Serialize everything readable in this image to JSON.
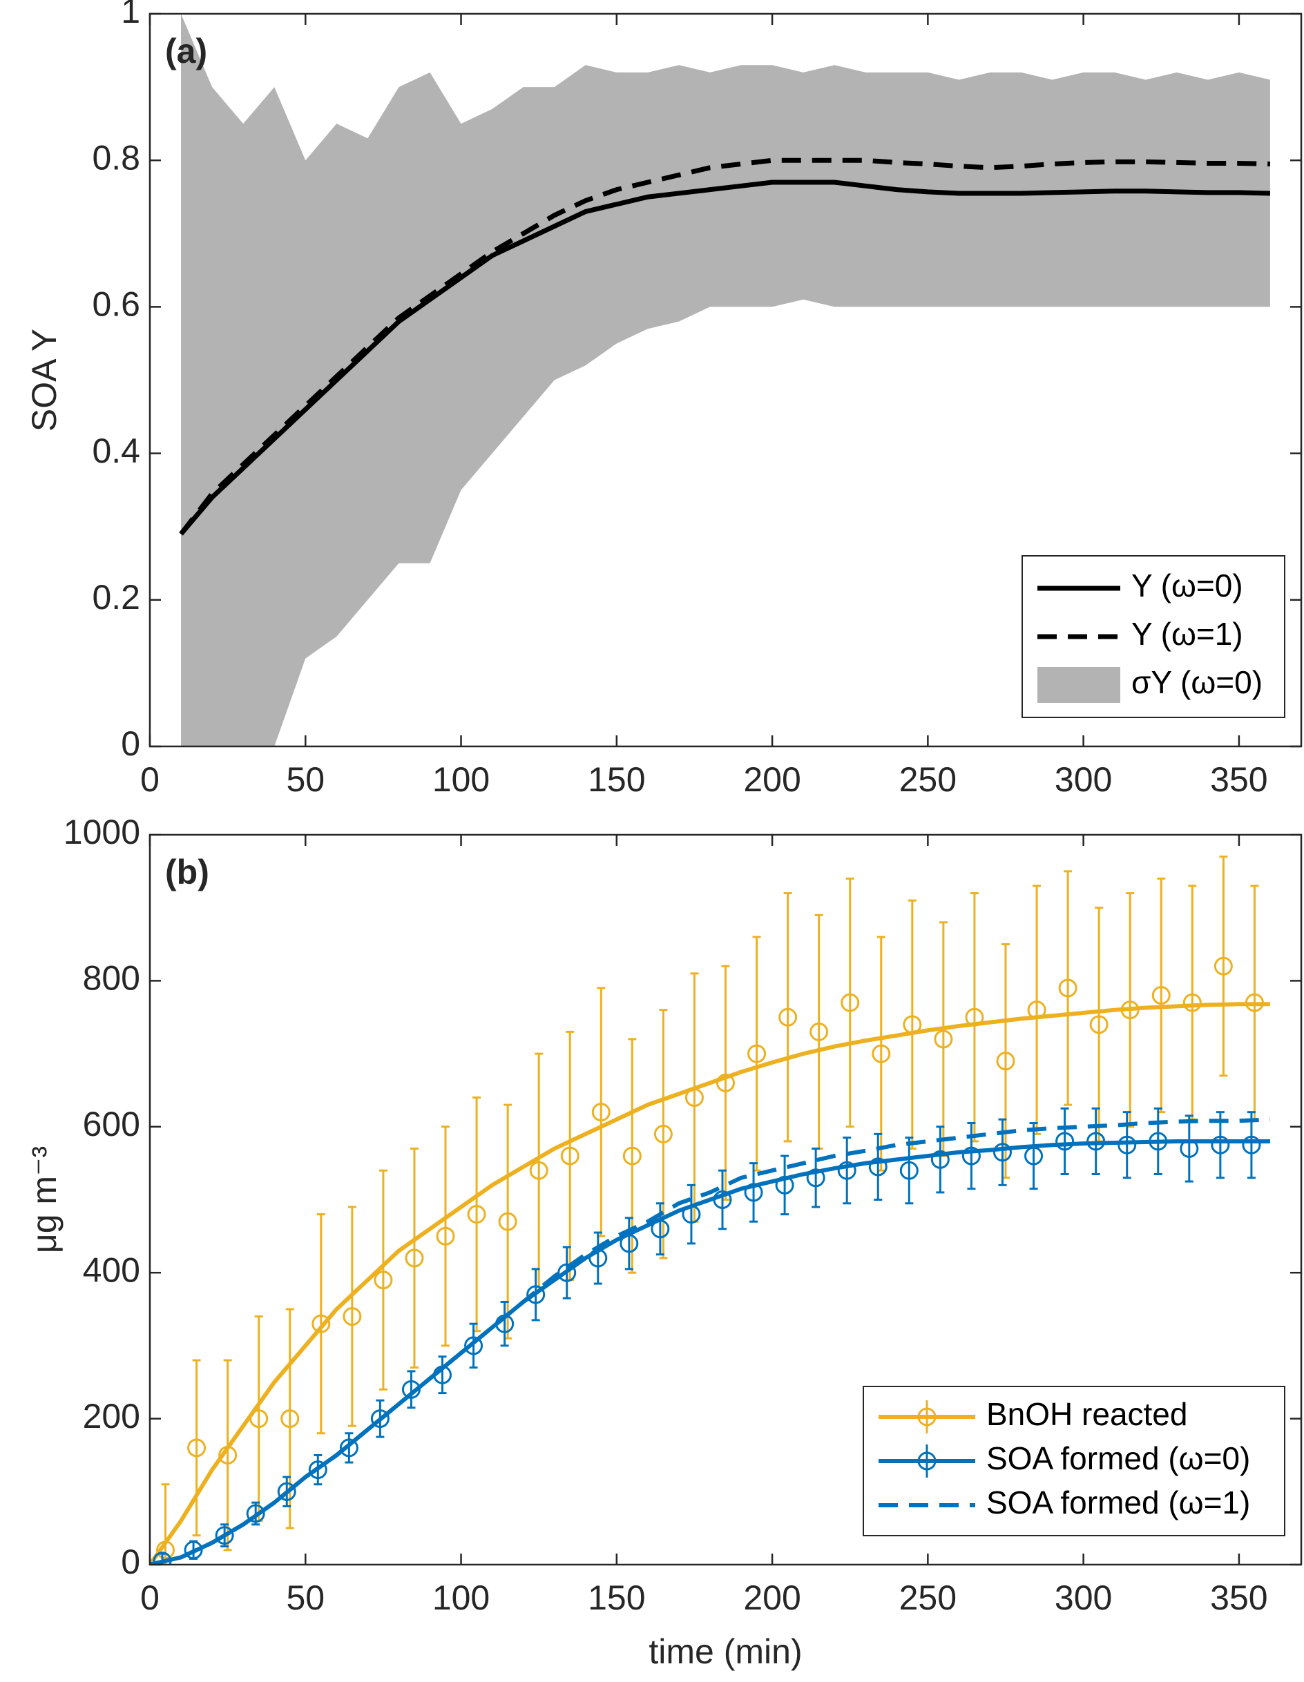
{
  "chart_data": [
    {
      "type": "line",
      "panel_label": "(a)",
      "ylabel": "SOA Y",
      "xlim": [
        0,
        370
      ],
      "xticks": [
        0,
        50,
        100,
        150,
        200,
        250,
        300,
        350
      ],
      "ylim": [
        0,
        1
      ],
      "yticks": [
        0,
        0.2,
        0.4,
        0.6,
        0.8,
        1
      ],
      "legend": "lower right",
      "x": [
        10,
        20,
        30,
        40,
        50,
        60,
        70,
        80,
        90,
        100,
        110,
        120,
        130,
        140,
        150,
        160,
        170,
        180,
        190,
        200,
        210,
        220,
        230,
        240,
        250,
        260,
        270,
        280,
        290,
        300,
        310,
        320,
        330,
        340,
        350,
        360
      ],
      "band": {
        "name": "σY (ω=0)",
        "color": "#b3b3b3",
        "upper": [
          1,
          0.9,
          0.85,
          0.9,
          0.8,
          0.85,
          0.83,
          0.9,
          0.92,
          0.85,
          0.87,
          0.9,
          0.9,
          0.93,
          0.92,
          0.92,
          0.93,
          0.92,
          0.93,
          0.93,
          0.92,
          0.93,
          0.92,
          0.92,
          0.92,
          0.91,
          0.92,
          0.92,
          0.91,
          0.92,
          0.92,
          0.91,
          0.92,
          0.91,
          0.92,
          0.91
        ],
        "lower": [
          0,
          0,
          0,
          0,
          0.12,
          0.15,
          0.2,
          0.25,
          0.25,
          0.35,
          0.4,
          0.45,
          0.5,
          0.52,
          0.55,
          0.57,
          0.58,
          0.6,
          0.6,
          0.6,
          0.61,
          0.6,
          0.6,
          0.6,
          0.6,
          0.6,
          0.6,
          0.6,
          0.6,
          0.6,
          0.6,
          0.6,
          0.6,
          0.6,
          0.6,
          0.6
        ]
      },
      "series": [
        {
          "name": "Y (ω=0)",
          "color": "#000000",
          "dashed": false,
          "values": [
            0.29,
            0.34,
            0.38,
            0.42,
            0.46,
            0.5,
            0.54,
            0.58,
            0.61,
            0.64,
            0.67,
            0.69,
            0.71,
            0.73,
            0.74,
            0.75,
            0.755,
            0.76,
            0.765,
            0.77,
            0.77,
            0.77,
            0.765,
            0.76,
            0.757,
            0.755,
            0.755,
            0.755,
            0.756,
            0.757,
            0.758,
            0.758,
            0.757,
            0.756,
            0.756,
            0.755
          ]
        },
        {
          "name": "Y (ω=1)",
          "color": "#000000",
          "dashed": true,
          "values": [
            0.29,
            0.345,
            0.385,
            0.425,
            0.465,
            0.505,
            0.545,
            0.585,
            0.615,
            0.645,
            0.675,
            0.7,
            0.725,
            0.745,
            0.76,
            0.77,
            0.78,
            0.79,
            0.795,
            0.8,
            0.8,
            0.8,
            0.8,
            0.797,
            0.795,
            0.792,
            0.79,
            0.792,
            0.795,
            0.797,
            0.798,
            0.798,
            0.797,
            0.796,
            0.796,
            0.795
          ]
        }
      ]
    },
    {
      "type": "line",
      "panel_label": "(b)",
      "ylabel": "μg m⁻³",
      "xlabel": "time (min)",
      "xlim": [
        0,
        370
      ],
      "xticks": [
        0,
        50,
        100,
        150,
        200,
        250,
        300,
        350
      ],
      "ylim": [
        0,
        1000
      ],
      "yticks": [
        0,
        200,
        400,
        600,
        800,
        1000
      ],
      "legend": "lower right",
      "x": [
        0,
        10,
        20,
        30,
        40,
        50,
        60,
        70,
        80,
        90,
        100,
        110,
        120,
        130,
        140,
        150,
        160,
        170,
        180,
        190,
        200,
        210,
        220,
        230,
        240,
        250,
        260,
        270,
        280,
        290,
        300,
        310,
        320,
        330,
        340,
        350,
        360
      ],
      "series": [
        {
          "name": "BnOH reacted",
          "color": "#edb120",
          "dashed": false,
          "values": [
            0,
            60,
            130,
            190,
            250,
            300,
            350,
            390,
            430,
            460,
            490,
            520,
            545,
            570,
            590,
            610,
            630,
            645,
            660,
            675,
            688,
            700,
            710,
            718,
            725,
            732,
            738,
            743,
            748,
            752,
            756,
            760,
            763,
            765,
            767,
            768,
            768
          ],
          "points_x": [
            5,
            15,
            25,
            35,
            45,
            55,
            65,
            75,
            85,
            95,
            105,
            115,
            125,
            135,
            145,
            155,
            165,
            175,
            185,
            195,
            205,
            215,
            225,
            235,
            245,
            255,
            265,
            275,
            285,
            295,
            305,
            315,
            325,
            335,
            345,
            355
          ],
          "points": [
            20,
            160,
            150,
            200,
            200,
            330,
            340,
            390,
            420,
            450,
            480,
            470,
            540,
            560,
            620,
            560,
            590,
            640,
            660,
            700,
            750,
            730,
            770,
            700,
            740,
            720,
            750,
            690,
            760,
            790,
            740,
            760,
            780,
            770,
            820,
            770
          ],
          "errors": [
            90,
            120,
            130,
            140,
            150,
            150,
            150,
            150,
            150,
            150,
            160,
            160,
            160,
            170,
            170,
            160,
            170,
            170,
            160,
            160,
            170,
            160,
            170,
            160,
            170,
            160,
            170,
            160,
            170,
            160,
            160,
            160,
            160,
            160,
            150,
            160
          ]
        },
        {
          "name": "SOA formed (ω=0)",
          "color": "#0072bd",
          "dashed": false,
          "values": [
            0,
            10,
            30,
            55,
            85,
            120,
            150,
            185,
            220,
            255,
            290,
            325,
            360,
            390,
            420,
            445,
            465,
            485,
            500,
            515,
            525,
            535,
            543,
            550,
            555,
            560,
            565,
            568,
            572,
            575,
            577,
            578,
            579,
            580,
            580,
            580,
            580
          ],
          "points_x": [
            4,
            14,
            24,
            34,
            44,
            54,
            64,
            74,
            84,
            94,
            104,
            114,
            124,
            134,
            144,
            154,
            164,
            174,
            184,
            194,
            204,
            214,
            224,
            234,
            244,
            254,
            264,
            274,
            284,
            294,
            304,
            314,
            324,
            334,
            344,
            354
          ],
          "points": [
            5,
            20,
            40,
            70,
            100,
            130,
            160,
            200,
            240,
            260,
            300,
            330,
            370,
            400,
            420,
            440,
            460,
            480,
            500,
            510,
            520,
            530,
            540,
            545,
            540,
            555,
            560,
            565,
            560,
            580,
            580,
            575,
            580,
            570,
            575,
            575
          ],
          "errors": [
            10,
            12,
            15,
            15,
            20,
            20,
            20,
            25,
            25,
            25,
            30,
            30,
            35,
            35,
            35,
            35,
            35,
            40,
            40,
            40,
            40,
            40,
            45,
            45,
            45,
            45,
            45,
            45,
            45,
            45,
            45,
            45,
            45,
            45,
            45,
            45
          ]
        },
        {
          "name": "SOA formed (ω=1)",
          "color": "#0072bd",
          "dashed": true,
          "values": [
            0,
            10,
            30,
            55,
            85,
            120,
            150,
            185,
            220,
            255,
            290,
            325,
            360,
            395,
            425,
            450,
            470,
            495,
            510,
            530,
            540,
            550,
            560,
            567,
            575,
            580,
            585,
            590,
            595,
            598,
            600,
            602,
            605,
            607,
            608,
            608,
            610
          ]
        }
      ]
    }
  ]
}
